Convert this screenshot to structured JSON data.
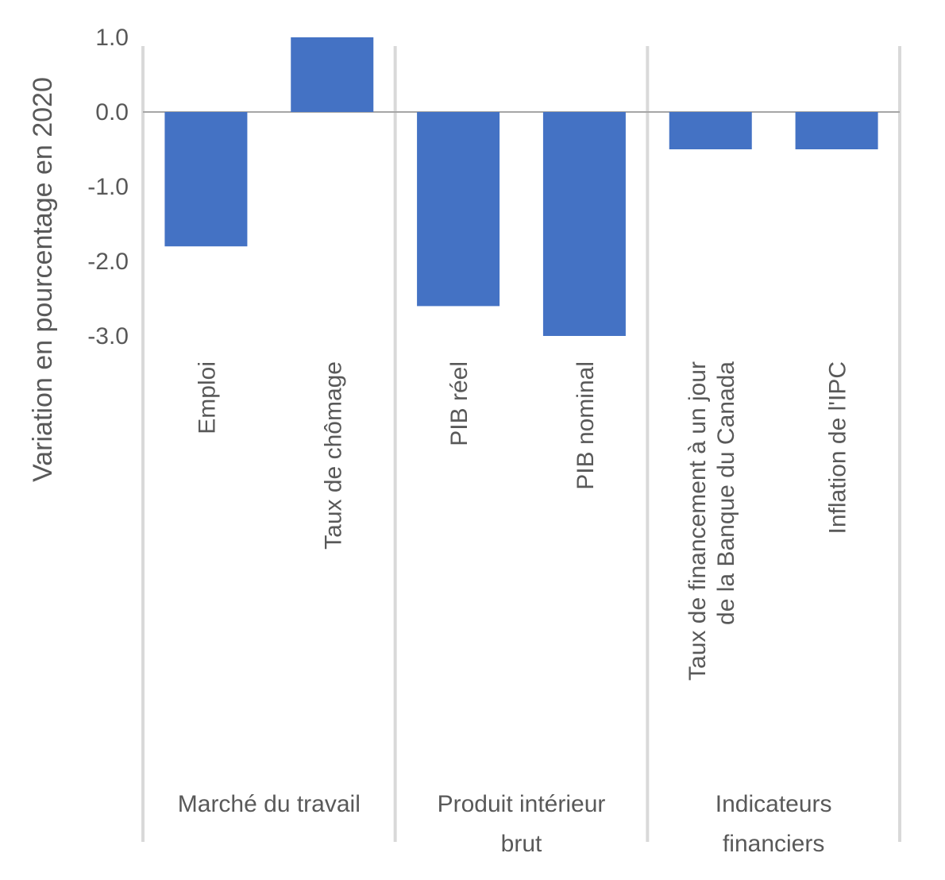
{
  "chart_data": {
    "type": "bar",
    "ylabel": "Variation en pourcentage en 2020",
    "ylim": [
      -3.0,
      1.0
    ],
    "yticks": [
      "1.0",
      "0.0",
      "-1.0",
      "-2.0",
      "-3.0"
    ],
    "tick_values": [
      1.0,
      0.0,
      -1.0,
      -2.0,
      -3.0
    ],
    "grid": false,
    "legend": "none",
    "colors": {
      "bar": "#4472C4",
      "zero_line": "#A6A6A6",
      "separator": "#D9D9D9",
      "text": "#595959"
    },
    "categories": [
      {
        "lines": [
          "Emploi"
        ]
      },
      {
        "lines": [
          "Taux de chômage"
        ]
      },
      {
        "lines": [
          "PIB réel"
        ]
      },
      {
        "lines": [
          "PIB nominal"
        ]
      },
      {
        "lines": [
          "Taux de financement à un jour",
          "de la Banque du Canada"
        ]
      },
      {
        "lines": [
          "Inflation de l'IPC"
        ]
      }
    ],
    "values": [
      -1.8,
      1.0,
      -2.6,
      -3.0,
      -0.5,
      -0.5
    ],
    "groups": [
      {
        "lines": [
          "Marché du travail"
        ],
        "count": 2
      },
      {
        "lines": [
          "Produit intérieur",
          "brut"
        ],
        "count": 2
      },
      {
        "lines": [
          "Indicateurs",
          "financiers"
        ],
        "count": 2
      }
    ]
  }
}
